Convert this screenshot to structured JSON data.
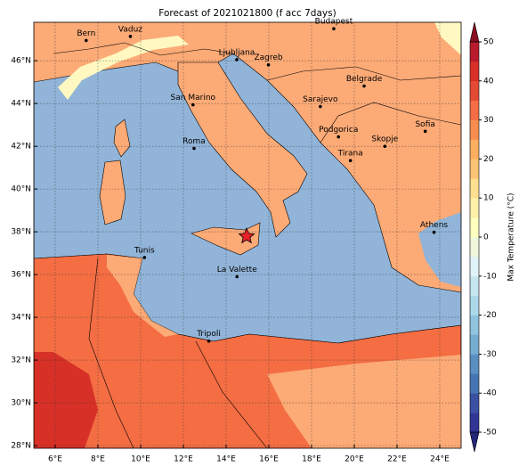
{
  "title": "Forecast of 2021021800 (f acc 7days)",
  "map": {
    "lonlim": [
      5,
      25
    ],
    "latlim": [
      27.875,
      47.8
    ],
    "xticks": [
      {
        "value": 6,
        "label": "6°E"
      },
      {
        "value": 8,
        "label": "8°E"
      },
      {
        "value": 10,
        "label": "10°E"
      },
      {
        "value": 12,
        "label": "12°E"
      },
      {
        "value": 14,
        "label": "14°E"
      },
      {
        "value": 16,
        "label": "16°E"
      },
      {
        "value": 18,
        "label": "18°E"
      },
      {
        "value": 20,
        "label": "20°E"
      },
      {
        "value": 22,
        "label": "22°E"
      },
      {
        "value": 24,
        "label": "24°E"
      }
    ],
    "yticks": [
      {
        "value": 28,
        "label": "28°N"
      },
      {
        "value": 30,
        "label": "30°N"
      },
      {
        "value": 32,
        "label": "32°N"
      },
      {
        "value": 34,
        "label": "34°N"
      },
      {
        "value": 36,
        "label": "36°N"
      },
      {
        "value": 38,
        "label": "38°N"
      },
      {
        "value": 40,
        "label": "40°N"
      },
      {
        "value": 42,
        "label": "42°N"
      },
      {
        "value": 44,
        "label": "44°N"
      },
      {
        "value": 46,
        "label": "46°N"
      }
    ],
    "grid": true,
    "cities": [
      {
        "name": "Bern",
        "lon": 7.45,
        "lat": 46.95
      },
      {
        "name": "Vaduz",
        "lon": 9.52,
        "lat": 47.14
      },
      {
        "name": "Budapest",
        "lon": 19.04,
        "lat": 47.5
      },
      {
        "name": "Ljubljana",
        "lon": 14.5,
        "lat": 46.05
      },
      {
        "name": "Zagreb",
        "lon": 15.98,
        "lat": 45.81
      },
      {
        "name": "Belgrade",
        "lon": 20.46,
        "lat": 44.82
      },
      {
        "name": "San Marino",
        "lon": 12.45,
        "lat": 43.94
      },
      {
        "name": "Sarajevo",
        "lon": 18.41,
        "lat": 43.86
      },
      {
        "name": "Sofia",
        "lon": 23.32,
        "lat": 42.7
      },
      {
        "name": "Roma",
        "lon": 12.5,
        "lat": 41.9
      },
      {
        "name": "Podgorica",
        "lon": 19.26,
        "lat": 42.44
      },
      {
        "name": "Skopje",
        "lon": 21.43,
        "lat": 42.0
      },
      {
        "name": "Tirana",
        "lon": 19.82,
        "lat": 41.33
      },
      {
        "name": "Athens",
        "lon": 23.73,
        "lat": 37.98
      },
      {
        "name": "Tunis",
        "lon": 10.18,
        "lat": 36.8
      },
      {
        "name": "La Valette",
        "lon": 14.51,
        "lat": 35.9
      },
      {
        "name": "Tripoli",
        "lon": 13.19,
        "lat": 32.89
      }
    ],
    "star": {
      "lon": 14.96,
      "lat": 37.79,
      "color": "#e8202a"
    }
  },
  "colorbar": {
    "label": "Max Temperature (°C)",
    "clim": [
      -50,
      50
    ],
    "ticks": [
      -50,
      -40,
      -30,
      -20,
      -10,
      0,
      10,
      20,
      30,
      40,
      50
    ],
    "colors": [
      "#313695",
      "#3b4fa3",
      "#4575b4",
      "#5b8fc2",
      "#74add1",
      "#90c3dd",
      "#abd9e9",
      "#c6e6f0",
      "#e0f3f8",
      "#f0f8dc",
      "#ffffbf",
      "#fef0a8",
      "#fee090",
      "#fdc374",
      "#fdae61",
      "#f88d52",
      "#f46d43",
      "#e34a33",
      "#d73027",
      "#b81c2c"
    ]
  }
}
